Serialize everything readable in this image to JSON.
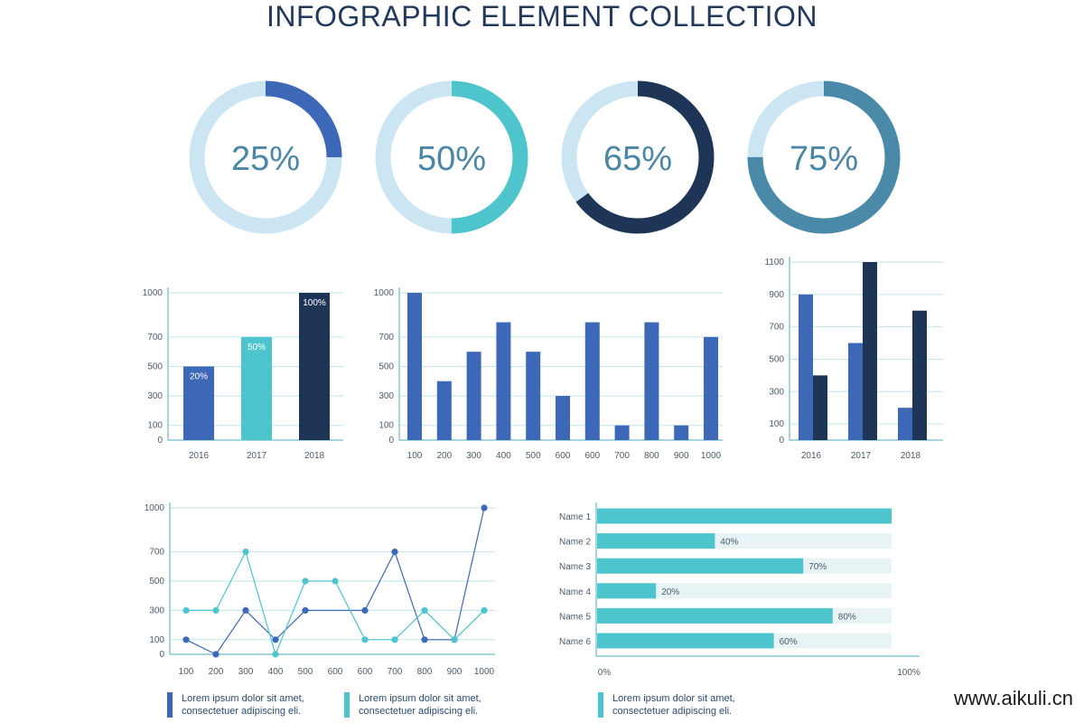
{
  "title": "INFOGRAPHIC ELEMENT COLLECTION",
  "watermark": "www.aikuli.cn",
  "colors": {
    "track": "#cbe6f2",
    "blue": "#3d68b8",
    "teal": "#4ec4cc",
    "navy": "#1f3558",
    "steel": "#4a8aa8",
    "grid": "#bfe6ea",
    "axis": "#86c9d6"
  },
  "chart_data": [
    {
      "type": "pie",
      "style": "donut",
      "items": [
        {
          "label": "25%",
          "value": 25,
          "color": "#3d68b8"
        },
        {
          "label": "50%",
          "value": 50,
          "color": "#4ec4cc"
        },
        {
          "label": "65%",
          "value": 65,
          "color": "#1f3558"
        },
        {
          "label": "75%",
          "value": 75,
          "color": "#4a8aa8"
        }
      ]
    },
    {
      "type": "bar",
      "categories": [
        "2016",
        "2017",
        "2018"
      ],
      "values": [
        500,
        700,
        1000
      ],
      "data_labels": [
        "20%",
        "50%",
        "100%"
      ],
      "colors": [
        "#3d68b8",
        "#4ec4cc",
        "#1f3558"
      ],
      "yticks": [
        "0",
        "100",
        "300",
        "500",
        "700",
        "1000"
      ],
      "ylim": [
        0,
        1000
      ]
    },
    {
      "type": "bar",
      "categories": [
        "100",
        "200",
        "300",
        "400",
        "500",
        "600",
        "600",
        "700",
        "800",
        "900",
        "1000"
      ],
      "values": [
        1000,
        400,
        600,
        800,
        600,
        300,
        800,
        100,
        800,
        100,
        700
      ],
      "yticks": [
        "0",
        "100",
        "300",
        "500",
        "700",
        "1000"
      ],
      "ylim": [
        0,
        1000
      ]
    },
    {
      "type": "bar",
      "categories": [
        "2016",
        "2017",
        "2018"
      ],
      "series": [
        {
          "values": [
            900,
            600,
            200
          ],
          "color": "#3d68b8"
        },
        {
          "values": [
            400,
            1100,
            800
          ],
          "color": "#1f3558"
        }
      ],
      "yticks": [
        "0",
        "100",
        "300",
        "500",
        "700",
        "900",
        "1100"
      ],
      "ylim": [
        0,
        1100
      ]
    },
    {
      "type": "line",
      "categories": [
        "100",
        "200",
        "300",
        "400",
        "500",
        "600",
        "600",
        "700",
        "800",
        "900",
        "1000"
      ],
      "series": [
        {
          "values": [
            100,
            0,
            300,
            100,
            300,
            null,
            300,
            700,
            100,
            100,
            1000
          ],
          "color": "#3d68b8"
        },
        {
          "values": [
            300,
            300,
            700,
            0,
            500,
            500,
            100,
            100,
            300,
            100,
            300
          ],
          "color": "#4ec4cc"
        }
      ],
      "yticks": [
        "0",
        "100",
        "300",
        "500",
        "700",
        "1000"
      ],
      "ylim": [
        0,
        1000
      ]
    },
    {
      "type": "bar",
      "orientation": "horizontal",
      "categories": [
        "Name 1",
        "Name 2",
        "Name 3",
        "Name 4",
        "Name 5",
        "Name 6"
      ],
      "values": [
        100,
        40,
        70,
        20,
        80,
        60
      ],
      "data_labels": [
        "",
        "40%",
        "70%",
        "20%",
        "80%",
        "60%"
      ],
      "xticks": [
        "0%",
        "100%"
      ],
      "xlim": [
        0,
        100
      ]
    }
  ],
  "captions": [
    {
      "line1": "Lorem ipsum dolor sit amet,",
      "line2": "consectetuer adipiscing eli.",
      "color": "#3d68b8"
    },
    {
      "line1": "Lorem ipsum dolor sit amet,",
      "line2": "consectetuer adipiscing eli.",
      "color": "#4ec4cc"
    },
    {
      "line1": "Lorem ipsum dolor sit amet,",
      "line2": "consectetuer adipiscing eli.",
      "color": "#4ec4cc"
    }
  ]
}
